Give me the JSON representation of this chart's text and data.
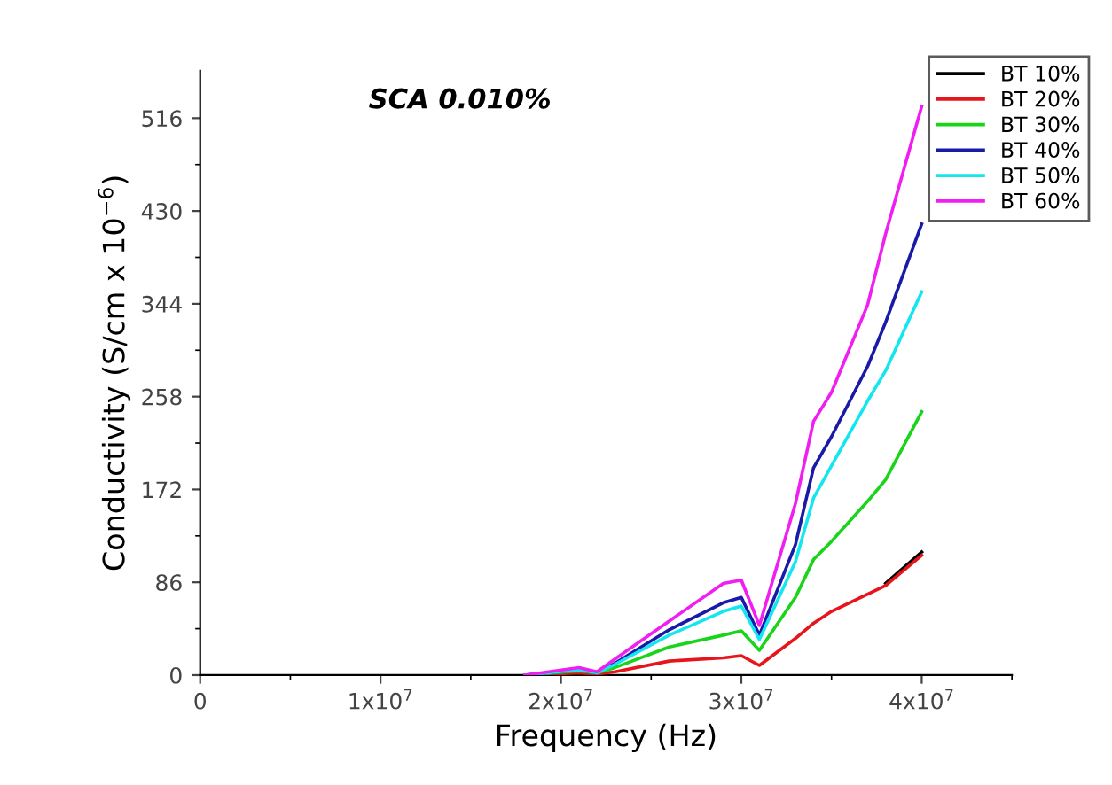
{
  "chart_data": {
    "type": "line",
    "title": "SCA 0.010%",
    "xlabel": "Frequency (Hz)",
    "ylabel": "Conductivity (S/cm x 10$^{−6}$)",
    "x": [
      18000000,
      21000000,
      22000000,
      23000000,
      26000000,
      29000000,
      30000000,
      31000000,
      33000000,
      34000000,
      35000000,
      37000000,
      38000000,
      40000000
    ],
    "series": [
      {
        "name": "BT 10%",
        "color": "#000000",
        "values": [
          null,
          null,
          null,
          null,
          null,
          null,
          null,
          null,
          null,
          null,
          null,
          null,
          85,
          114
        ]
      },
      {
        "name": "BT 20%",
        "color": "#e8141b",
        "values": [
          0,
          2,
          1,
          3,
          13,
          16,
          18,
          9,
          34,
          48,
          59,
          75,
          83,
          111
        ]
      },
      {
        "name": "BT 30%",
        "color": "#19d419",
        "values": [
          0,
          4,
          2,
          7,
          26,
          37,
          41,
          23,
          72,
          107,
          124,
          161,
          181,
          244
        ]
      },
      {
        "name": "BT 40%",
        "color": "#1a1aa8",
        "values": [
          0,
          5,
          2,
          11,
          42,
          67,
          72,
          37,
          121,
          192,
          221,
          286,
          327,
          418
        ]
      },
      {
        "name": "BT 50%",
        "color": "#14e6f0",
        "values": [
          0,
          5,
          2,
          10,
          37,
          59,
          64,
          33,
          105,
          164,
          194,
          254,
          282,
          355
        ]
      },
      {
        "name": "BT 60%",
        "color": "#f01ef0",
        "values": [
          0,
          7,
          3,
          15,
          50,
          85,
          88,
          46,
          159,
          235,
          262,
          343,
          409,
          527
        ]
      }
    ],
    "xlim": [
      0,
      45000000
    ],
    "ylim": [
      0,
      560
    ],
    "xticks": [
      0,
      {
        "value": 10000000,
        "label": "1x10$^{7}$"
      },
      {
        "value": 20000000,
        "label": "2x10$^{7}$"
      },
      {
        "value": 30000000,
        "label": "3x10$^{7}$"
      },
      {
        "value": 40000000,
        "label": "4x10$^{7}$"
      }
    ],
    "yticks": [
      0,
      86,
      172,
      258,
      344,
      430,
      516
    ],
    "grid": false,
    "legend": "top right",
    "marker": "none",
    "line_style": "solid"
  }
}
